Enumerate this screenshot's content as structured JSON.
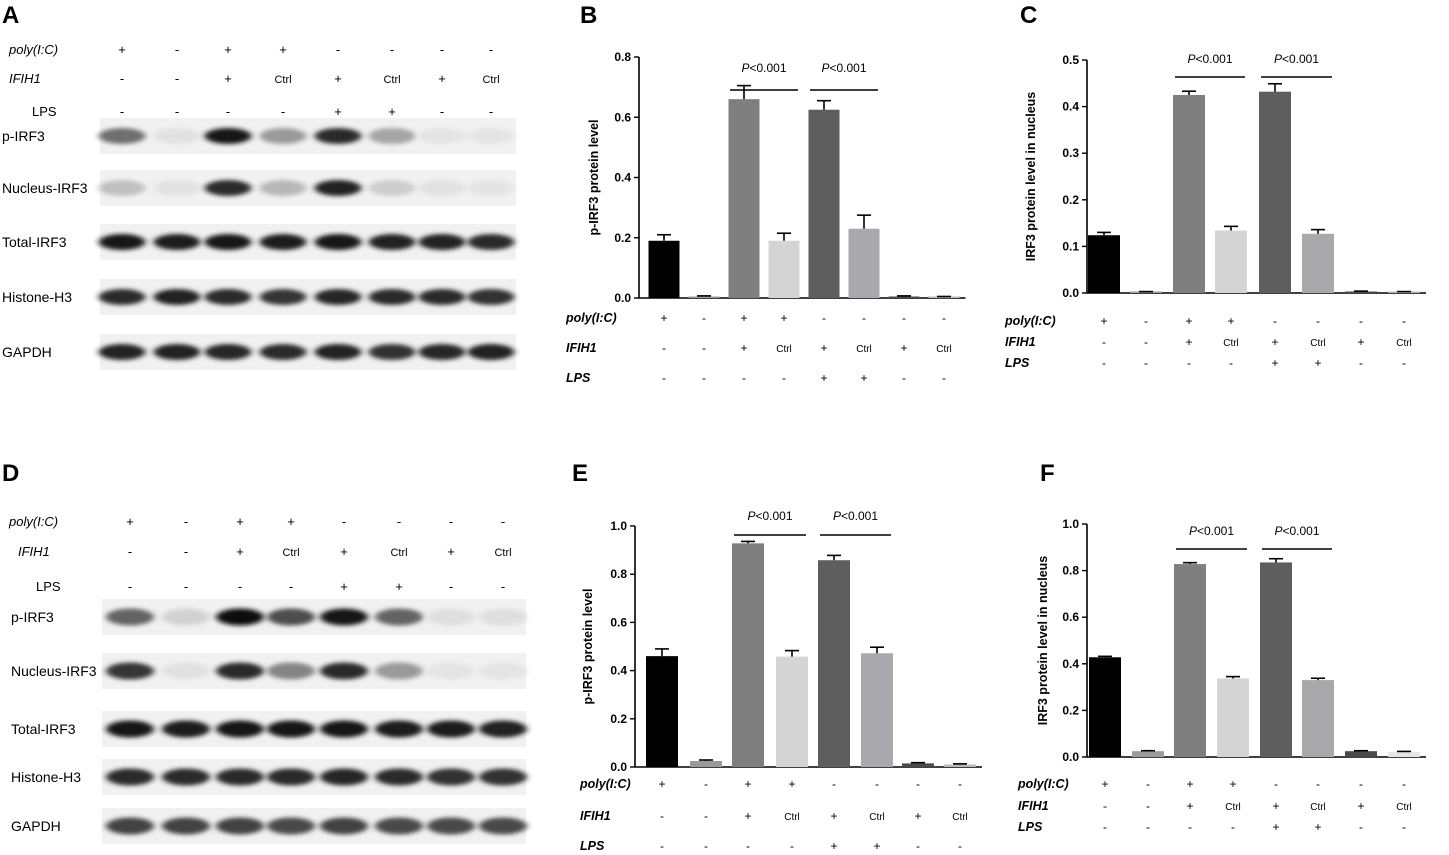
{
  "panel_labels": [
    "A",
    "B",
    "C",
    "D",
    "E",
    "F"
  ],
  "blots": [
    {
      "panel": "A",
      "condition_rows": [
        {
          "name": "poly(I:C)",
          "italic": true,
          "values": [
            "+",
            "-",
            "+",
            "+",
            "-",
            "-",
            "-",
            "-"
          ]
        },
        {
          "name": "IFIH1",
          "italic": true,
          "values": [
            "-",
            "-",
            "+",
            "Ctrl",
            "+",
            "Ctrl",
            "+",
            "Ctrl"
          ]
        },
        {
          "name": "LPS",
          "italic": false,
          "values": [
            "-",
            "-",
            "-",
            "-",
            "+",
            "+",
            "-",
            "-"
          ]
        }
      ],
      "band_rows": [
        {
          "name": "p-IRF3",
          "intensity": [
            0.55,
            0.03,
            0.95,
            0.35,
            0.85,
            0.3,
            0.02,
            0.02
          ]
        },
        {
          "name": "Nucleus-IRF3",
          "intensity": [
            0.18,
            0.03,
            0.85,
            0.22,
            0.9,
            0.12,
            0.03,
            0.02
          ]
        },
        {
          "name": "Total-IRF3",
          "intensity": [
            0.95,
            0.93,
            0.95,
            0.92,
            0.95,
            0.9,
            0.9,
            0.85
          ]
        },
        {
          "name": "Histone-H3",
          "intensity": [
            0.85,
            0.9,
            0.85,
            0.8,
            0.88,
            0.85,
            0.85,
            0.82
          ]
        },
        {
          "name": "GAPDH",
          "intensity": [
            0.9,
            0.9,
            0.88,
            0.85,
            0.9,
            0.82,
            0.88,
            0.9
          ]
        }
      ]
    },
    {
      "panel": "D",
      "condition_rows": [
        {
          "name": "poly(I:C)",
          "italic": true,
          "values": [
            "+",
            "-",
            "+",
            "+",
            "-",
            "-",
            "-",
            "-"
          ]
        },
        {
          "name": "IFIH1",
          "italic": true,
          "values": [
            "-",
            "-",
            "+",
            "Ctrl",
            "+",
            "Ctrl",
            "+",
            "Ctrl"
          ]
        },
        {
          "name": "LPS",
          "italic": false,
          "values": [
            "-",
            "-",
            "-",
            "-",
            "+",
            "+",
            "-",
            "-"
          ]
        }
      ],
      "band_rows": [
        {
          "name": "p-IRF3",
          "intensity": [
            0.6,
            0.1,
            0.98,
            0.7,
            0.95,
            0.6,
            0.04,
            0.04
          ]
        },
        {
          "name": "Nucleus-IRF3",
          "intensity": [
            0.8,
            0.03,
            0.85,
            0.45,
            0.85,
            0.35,
            0.02,
            0.02
          ]
        },
        {
          "name": "Total-IRF3",
          "intensity": [
            0.95,
            0.93,
            0.95,
            0.95,
            0.95,
            0.93,
            0.92,
            0.9
          ]
        },
        {
          "name": "Histone-H3",
          "intensity": [
            0.85,
            0.85,
            0.85,
            0.85,
            0.88,
            0.85,
            0.82,
            0.82
          ]
        },
        {
          "name": "GAPDH",
          "intensity": [
            0.75,
            0.75,
            0.75,
            0.72,
            0.75,
            0.72,
            0.72,
            0.72
          ]
        }
      ]
    }
  ],
  "chart_data": [
    {
      "panel": "B",
      "type": "bar",
      "ylabel": "p-IRF3 protein level",
      "ylim": [
        0,
        0.8
      ],
      "yticks": [
        "0.0",
        "0.2",
        "0.4",
        "0.6",
        "0.8"
      ],
      "values": [
        0.19,
        0.005,
        0.66,
        0.19,
        0.625,
        0.23,
        0.005,
        0.003
      ],
      "errors": [
        0.02,
        0.002,
        0.045,
        0.025,
        0.03,
        0.045,
        0.002,
        0.002
      ],
      "colors": [
        "#000000",
        "#9a9a9a",
        "#7f7f7f",
        "#d4d4d4",
        "#5e5e5e",
        "#a8a8ad",
        "#4a4a4a",
        "#b8b8b8"
      ],
      "annotations": [
        {
          "prefix": "P",
          "text": "<0.001",
          "from": 2,
          "to": 3
        },
        {
          "prefix": "P",
          "text": "<0.001",
          "from": 4,
          "to": 5
        }
      ],
      "condition_rows": [
        {
          "name": "poly(I:C)",
          "values": [
            "+",
            "-",
            "+",
            "+",
            "-",
            "-",
            "-",
            "-"
          ]
        },
        {
          "name": "IFIH1",
          "values": [
            "-",
            "-",
            "+",
            "Ctrl",
            "+",
            "Ctrl",
            "+",
            "Ctrl"
          ]
        },
        {
          "name": "LPS",
          "values": [
            "-",
            "-",
            "-",
            "-",
            "+",
            "+",
            "-",
            "-"
          ]
        }
      ]
    },
    {
      "panel": "C",
      "type": "bar",
      "ylabel": "IRF3 protein level in nucleus",
      "ylim": [
        0,
        0.5
      ],
      "yticks": [
        "0.0",
        "0.1",
        "0.2",
        "0.3",
        "0.4",
        "0.5"
      ],
      "values": [
        0.124,
        0.002,
        0.425,
        0.134,
        0.432,
        0.127,
        0.003,
        0.002
      ],
      "errors": [
        0.006,
        0.001,
        0.008,
        0.009,
        0.017,
        0.009,
        0.001,
        0.001
      ],
      "colors": [
        "#000000",
        "#9a9a9a",
        "#7f7f7f",
        "#d4d4d4",
        "#5e5e5e",
        "#a8a8ad",
        "#4a4a4a",
        "#b8b8b8"
      ],
      "annotations": [
        {
          "prefix": "P",
          "text": "<0.001",
          "from": 2,
          "to": 3
        },
        {
          "prefix": "P",
          "text": "<0.001",
          "from": 4,
          "to": 5
        }
      ],
      "condition_rows": [
        {
          "name": "poly(I:C)",
          "values": [
            "+",
            "-",
            "+",
            "+",
            "-",
            "-",
            "-",
            "-"
          ]
        },
        {
          "name": "IFIH1",
          "values": [
            "-",
            "-",
            "+",
            "Ctrl",
            "+",
            "Ctrl",
            "+",
            "Ctrl"
          ]
        },
        {
          "name": "LPS",
          "values": [
            "-",
            "-",
            "-",
            "-",
            "+",
            "+",
            "-",
            "-"
          ]
        }
      ]
    },
    {
      "panel": "E",
      "type": "bar",
      "ylabel": "p-IRF3 protein level",
      "ylim": [
        0,
        1.0
      ],
      "yticks": [
        "0.0",
        "0.2",
        "0.4",
        "0.6",
        "0.8",
        "1.0"
      ],
      "values": [
        0.46,
        0.025,
        0.928,
        0.458,
        0.858,
        0.472,
        0.015,
        0.01
      ],
      "errors": [
        0.03,
        0.004,
        0.008,
        0.025,
        0.02,
        0.025,
        0.003,
        0.003
      ],
      "colors": [
        "#000000",
        "#9a9a9a",
        "#7f7f7f",
        "#d4d4d4",
        "#5e5e5e",
        "#a8a8ad",
        "#4a4a4a",
        "#b8b8b8"
      ],
      "annotations": [
        {
          "prefix": "P",
          "text": "<0.001",
          "from": 2,
          "to": 3
        },
        {
          "prefix": "P",
          "text": "<0.001",
          "from": 4,
          "to": 5
        }
      ],
      "condition_rows": [
        {
          "name": "poly(I:C)",
          "values": [
            "+",
            "-",
            "+",
            "+",
            "-",
            "-",
            "-",
            "-"
          ]
        },
        {
          "name": "IFIH1",
          "values": [
            "-",
            "-",
            "+",
            "Ctrl",
            "+",
            "Ctrl",
            "+",
            "Ctrl"
          ]
        },
        {
          "name": "LPS",
          "values": [
            "-",
            "-",
            "-",
            "-",
            "+",
            "+",
            "-",
            "-"
          ]
        }
      ]
    },
    {
      "panel": "F",
      "type": "bar",
      "ylabel": "IRF3 protein level in nucleus",
      "ylim": [
        0,
        1.0
      ],
      "yticks": [
        "0.0",
        "0.2",
        "0.4",
        "0.6",
        "0.8",
        "1.0"
      ],
      "values": [
        0.428,
        0.025,
        0.828,
        0.337,
        0.835,
        0.33,
        0.025,
        0.022
      ],
      "errors": [
        0.004,
        0.002,
        0.006,
        0.008,
        0.016,
        0.008,
        0.002,
        0.002
      ],
      "colors": [
        "#000000",
        "#9a9a9a",
        "#7f7f7f",
        "#d4d4d4",
        "#5e5e5e",
        "#a8a8ad",
        "#4a4a4a",
        "#e6e6e6"
      ],
      "annotations": [
        {
          "prefix": "P",
          "text": "<0.001",
          "from": 2,
          "to": 3
        },
        {
          "prefix": "P",
          "text": "<0.001",
          "from": 4,
          "to": 5
        }
      ],
      "condition_rows": [
        {
          "name": "poly(I:C)",
          "values": [
            "+",
            "-",
            "+",
            "+",
            "-",
            "-",
            "-",
            "-"
          ]
        },
        {
          "name": "IFIH1",
          "values": [
            "-",
            "-",
            "+",
            "Ctrl",
            "+",
            "Ctrl",
            "+",
            "Ctrl"
          ]
        },
        {
          "name": "LPS",
          "values": [
            "-",
            "-",
            "-",
            "-",
            "+",
            "+",
            "-",
            "-"
          ]
        }
      ]
    }
  ]
}
